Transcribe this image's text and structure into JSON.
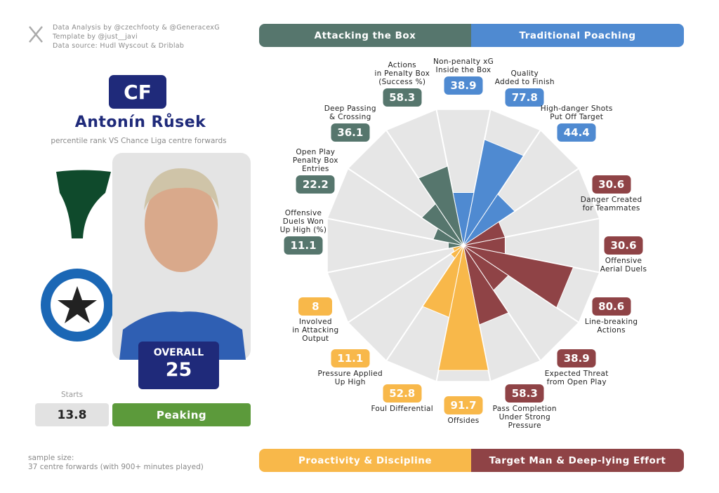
{
  "credits": [
    "Data Analysis by @czechfooty & @GeneracexG",
    "Template by @just__javi",
    "Data source: Hudl Wyscout & Driblab"
  ],
  "player": {
    "position": "CF",
    "name": "Antonín Růsek",
    "subtitle": "percentile rank VS Chance Liga centre forwards",
    "overall_label": "OVERALL",
    "overall": 25,
    "starts_label": "Starts",
    "starts": 13.8,
    "status": "Peaking"
  },
  "sample_size": "sample size:\n37 centre forwards (with 900+ minutes played)",
  "chart_data": {
    "type": "pizza",
    "rlim": [
      0,
      100
    ],
    "background_color": "#e6e6e6",
    "series": [
      {
        "name": "Traditional Poaching",
        "color": "#4f8ad1",
        "categories": [
          "Non-penalty xG\nInside the Box",
          "Quality\nAdded to Finish",
          "High-danger Shots\nPut Off Target"
        ],
        "values": [
          38.9,
          77.8,
          44.4
        ]
      },
      {
        "name": "Target Man & Deep-lying Effort",
        "color": "#8f4346",
        "categories": [
          "Danger Created\nfor Teammates",
          "Offensive\nAerial Duels",
          "Line-breaking\nActions",
          "Expected Threat\nfrom Open Play",
          "Pass Completion\nUnder Strong\nPressure"
        ],
        "values": [
          30.6,
          30.6,
          80.6,
          38.9,
          58.3
        ]
      },
      {
        "name": "Proactivity & Discipline",
        "color": "#f8b84a",
        "categories": [
          "Offsides",
          "Foul Differential",
          "Pressure Applied\nUp High",
          "Involved\nin Attacking\nOutput"
        ],
        "values": [
          91.7,
          52.8,
          11.1,
          8
        ]
      },
      {
        "name": "Attacking the Box",
        "color": "#56766d",
        "categories": [
          "Offensive\nDuels Won\nUp High (%)",
          "Open Play\nPenalty Box\nEntries",
          "Deep Passing\n& Crossing",
          "Actions\nin Penalty Box\n(Success %)"
        ],
        "values": [
          11.1,
          22.2,
          36.1,
          58.3
        ]
      }
    ]
  }
}
